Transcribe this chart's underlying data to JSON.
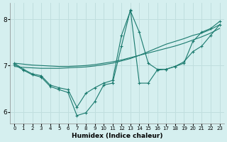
{
  "xlabel": "Humidex (Indice chaleur)",
  "bg_color": "#d5efef",
  "grid_color": "#c0dede",
  "line_color": "#1a7a6e",
  "xlim": [
    -0.5,
    23.5
  ],
  "ylim": [
    5.75,
    8.35
  ],
  "yticks": [
    6,
    7,
    8
  ],
  "xtick_labels": [
    "0",
    "1",
    "2",
    "3",
    "4",
    "5",
    "6",
    "7",
    "8",
    "9",
    "10",
    "11",
    "12",
    "13",
    "14",
    "15",
    "16",
    "17",
    "18",
    "19",
    "20",
    "21",
    "22",
    "23"
  ],
  "lines": [
    {
      "x": [
        0,
        1,
        2,
        3,
        4,
        5,
        6,
        7,
        8,
        9,
        10,
        11,
        12,
        13,
        14,
        15,
        16,
        17,
        18,
        19,
        20,
        21,
        22,
        23
      ],
      "y": [
        7.05,
        7.03,
        7.01,
        7.0,
        6.99,
        6.98,
        6.98,
        6.99,
        7.0,
        7.02,
        7.05,
        7.08,
        7.12,
        7.17,
        7.22,
        7.27,
        7.32,
        7.37,
        7.42,
        7.48,
        7.55,
        7.62,
        7.7,
        7.8
      ],
      "markers": false
    },
    {
      "x": [
        0,
        1,
        2,
        3,
        4,
        5,
        6,
        7,
        8,
        9,
        10,
        11,
        12,
        13,
        14,
        15,
        16,
        17,
        18,
        19,
        20,
        21,
        22,
        23
      ],
      "y": [
        6.98,
        6.96,
        6.95,
        6.94,
        6.94,
        6.94,
        6.95,
        6.96,
        6.97,
        6.99,
        7.02,
        7.05,
        7.1,
        7.15,
        7.22,
        7.3,
        7.38,
        7.46,
        7.52,
        7.58,
        7.65,
        7.7,
        7.78,
        7.88
      ],
      "markers": false
    },
    {
      "x": [
        0,
        1,
        2,
        3,
        4,
        5,
        6,
        7,
        8,
        9,
        10,
        11,
        12,
        13,
        14,
        15,
        16,
        17,
        18,
        19,
        20,
        21,
        22,
        23
      ],
      "y": [
        7.05,
        6.92,
        6.82,
        6.78,
        6.58,
        6.52,
        6.48,
        6.1,
        6.4,
        6.52,
        6.62,
        6.68,
        7.65,
        8.18,
        7.72,
        7.05,
        6.92,
        6.92,
        6.98,
        7.05,
        7.52,
        7.72,
        7.8,
        7.95
      ],
      "markers": true
    },
    {
      "x": [
        0,
        1,
        2,
        3,
        4,
        5,
        6,
        7,
        8,
        9,
        10,
        11,
        12,
        13,
        14,
        15,
        16,
        17,
        18,
        19,
        20,
        21,
        22,
        23
      ],
      "y": [
        7.02,
        6.9,
        6.8,
        6.75,
        6.55,
        6.48,
        6.42,
        5.92,
        5.98,
        6.22,
        6.58,
        6.62,
        7.42,
        8.2,
        6.62,
        6.62,
        6.9,
        6.92,
        6.98,
        7.08,
        7.3,
        7.42,
        7.65,
        7.88
      ],
      "markers": true
    }
  ]
}
